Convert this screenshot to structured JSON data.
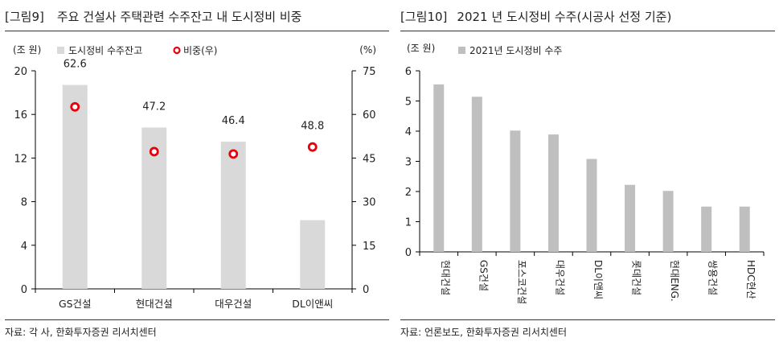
{
  "left": {
    "tag": "[그림9]",
    "title": "주요 건설사 주택관련 수주잔고 내 도시정비 비중",
    "source": "자료: 각 사, 한화투자증권 리서치센터",
    "chart_data": {
      "type": "bar",
      "categories": [
        "GS건설",
        "현대건설",
        "대우건설",
        "DL이앤씨"
      ],
      "series": [
        {
          "name": "도시정비  수주잔고",
          "type": "bar",
          "axis": "left",
          "values": [
            18.7,
            14.8,
            13.5,
            6.3
          ]
        },
        {
          "name": "비중(우)",
          "type": "scatter",
          "axis": "right",
          "values": [
            62.6,
            47.2,
            46.4,
            48.8
          ]
        }
      ],
      "data_labels": [
        "62.6",
        "47.2",
        "46.4",
        "48.8"
      ],
      "ylabel": "(조 원)",
      "y2label": "(%)",
      "ylim": [
        0,
        20
      ],
      "y2lim": [
        0,
        75
      ],
      "yticks": [
        0,
        4,
        8,
        12,
        16,
        20
      ],
      "y2ticks": [
        0,
        15,
        30,
        45,
        60,
        75
      ],
      "legend_position": "top",
      "grid": false,
      "colors": {
        "bar": "#d9d9d9",
        "marker": "#e8000b"
      }
    }
  },
  "right": {
    "tag": "[그림10]",
    "title": "2021 년 도시정비 수주(시공사 선정 기준)",
    "source": "자료: 언론보도, 한화투자증권 리서치센터",
    "chart_data": {
      "type": "bar",
      "categories": [
        "현대건설",
        "GS건설",
        "포스코건설",
        "대우건설",
        "DL이앤씨",
        "롯데건설",
        "현대ENG.",
        "쌍용건설",
        "HDC현산"
      ],
      "series": [
        {
          "name": "2021년  도시정비  수주",
          "values": [
            5.55,
            5.14,
            4.02,
            3.89,
            3.08,
            2.22,
            2.02,
            1.5,
            1.5
          ]
        }
      ],
      "ylabel": "(조 원)",
      "ylim": [
        0,
        6
      ],
      "yticks": [
        0,
        1,
        2,
        3,
        4,
        5,
        6
      ],
      "legend_position": "top",
      "grid": false,
      "colors": {
        "bar": "#bfbfbf"
      }
    }
  }
}
